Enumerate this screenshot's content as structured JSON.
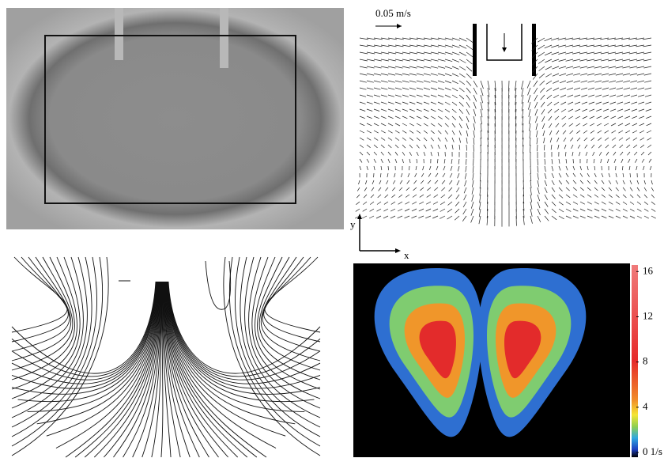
{
  "scale_label": "0.05 m/s",
  "axes": {
    "y": "y",
    "x": "x"
  },
  "colorbar": {
    "lim": [
      0,
      17
    ],
    "ticks": [
      {
        "value": 0,
        "label": "0 1/s"
      },
      4,
      8,
      12,
      16
    ]
  }
}
